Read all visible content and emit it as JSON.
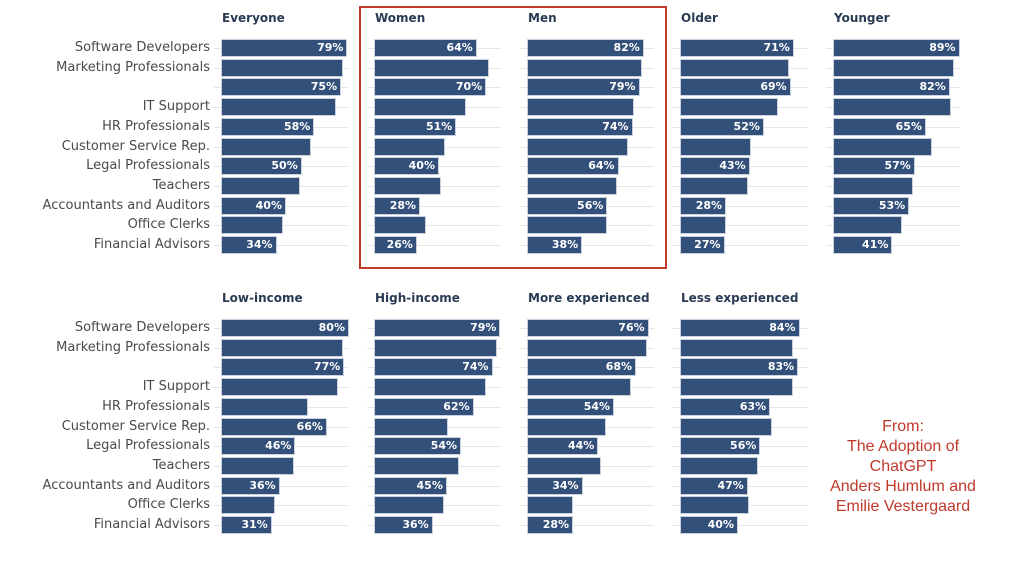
{
  "chart_data": {
    "type": "bar",
    "orientation": "horizontal",
    "categories": [
      "Software Developers",
      "Marketing Professionals",
      "",
      "IT Support",
      "HR Professionals",
      "Customer Service Rep.",
      "Legal Professionals",
      "Teachers",
      "Accountants and Auditors",
      "Office Clerks",
      "Financial Advisors"
    ],
    "colors": {
      "bar": "#33507a",
      "highlight": "#c0392b",
      "title": "#2a3a55"
    },
    "grid": true,
    "highlight_panels": [
      "Women",
      "Men"
    ],
    "panels": [
      {
        "title": "Everyone",
        "xlim": [
          0,
          80
        ],
        "values": [
          79,
          76,
          75,
          72,
          58,
          56,
          50,
          49,
          40,
          38,
          34
        ],
        "labels": [
          "79%",
          "",
          "75%",
          "",
          "58%",
          "",
          "50%",
          "",
          "40%",
          "",
          "34%"
        ]
      },
      {
        "title": "Women",
        "xlim": [
          0,
          80
        ],
        "values": [
          64,
          72,
          70,
          57,
          51,
          44,
          40,
          41,
          28,
          32,
          26
        ],
        "labels": [
          "64%",
          "",
          "70%",
          "",
          "51%",
          "",
          "40%",
          "",
          "28%",
          "",
          "26%"
        ]
      },
      {
        "title": "Men",
        "xlim": [
          0,
          90
        ],
        "values": [
          82,
          81,
          79,
          75,
          74,
          71,
          64,
          63,
          56,
          56,
          38
        ],
        "labels": [
          "82%",
          "",
          "79%",
          "",
          "74%",
          "",
          "64%",
          "",
          "56%",
          "",
          "38%"
        ]
      },
      {
        "title": "Older",
        "xlim": [
          0,
          80
        ],
        "values": [
          71,
          68,
          69,
          61,
          52,
          44,
          43,
          42,
          28,
          28,
          27
        ],
        "labels": [
          "71%",
          "",
          "69%",
          "",
          "52%",
          "",
          "43%",
          "",
          "28%",
          "",
          "27%"
        ]
      },
      {
        "title": "Younger",
        "xlim": [
          0,
          90
        ],
        "values": [
          89,
          85,
          82,
          83,
          65,
          69,
          57,
          56,
          53,
          48,
          41
        ],
        "labels": [
          "89%",
          "",
          "82%",
          "",
          "65%",
          "",
          "57%",
          "",
          "53%",
          "",
          "41%"
        ]
      },
      {
        "title": "Low-income",
        "xlim": [
          0,
          80
        ],
        "values": [
          80,
          76,
          77,
          73,
          54,
          66,
          46,
          45,
          36,
          33,
          31
        ],
        "labels": [
          "80%",
          "",
          "77%",
          "",
          "",
          "66%",
          "46%",
          "",
          "36%",
          "",
          "31%"
        ]
      },
      {
        "title": "High-income",
        "xlim": [
          0,
          80
        ],
        "values": [
          79,
          77,
          74,
          70,
          62,
          46,
          54,
          53,
          45,
          43,
          36
        ],
        "labels": [
          "79%",
          "",
          "74%",
          "",
          "62%",
          "",
          "54%",
          "",
          "45%",
          "",
          "36%"
        ]
      },
      {
        "title": "More experienced",
        "xlim": [
          0,
          80
        ],
        "values": [
          76,
          75,
          68,
          65,
          54,
          49,
          44,
          46,
          34,
          28,
          28
        ],
        "labels": [
          "76%",
          "",
          "68%",
          "",
          "54%",
          "",
          "44%",
          "",
          "34%",
          "",
          "28%"
        ]
      },
      {
        "title": "Less experienced",
        "xlim": [
          0,
          90
        ],
        "values": [
          84,
          79,
          83,
          79,
          63,
          64,
          56,
          54,
          47,
          48,
          40
        ],
        "labels": [
          "84%",
          "",
          "83%",
          "",
          "63%",
          "",
          "56%",
          "",
          "47%",
          "",
          "40%"
        ]
      }
    ],
    "annotation": [
      "From:",
      "The Adoption of",
      "ChatGPT",
      "Anders Humlum and",
      "Emilie Vestergaard"
    ]
  }
}
